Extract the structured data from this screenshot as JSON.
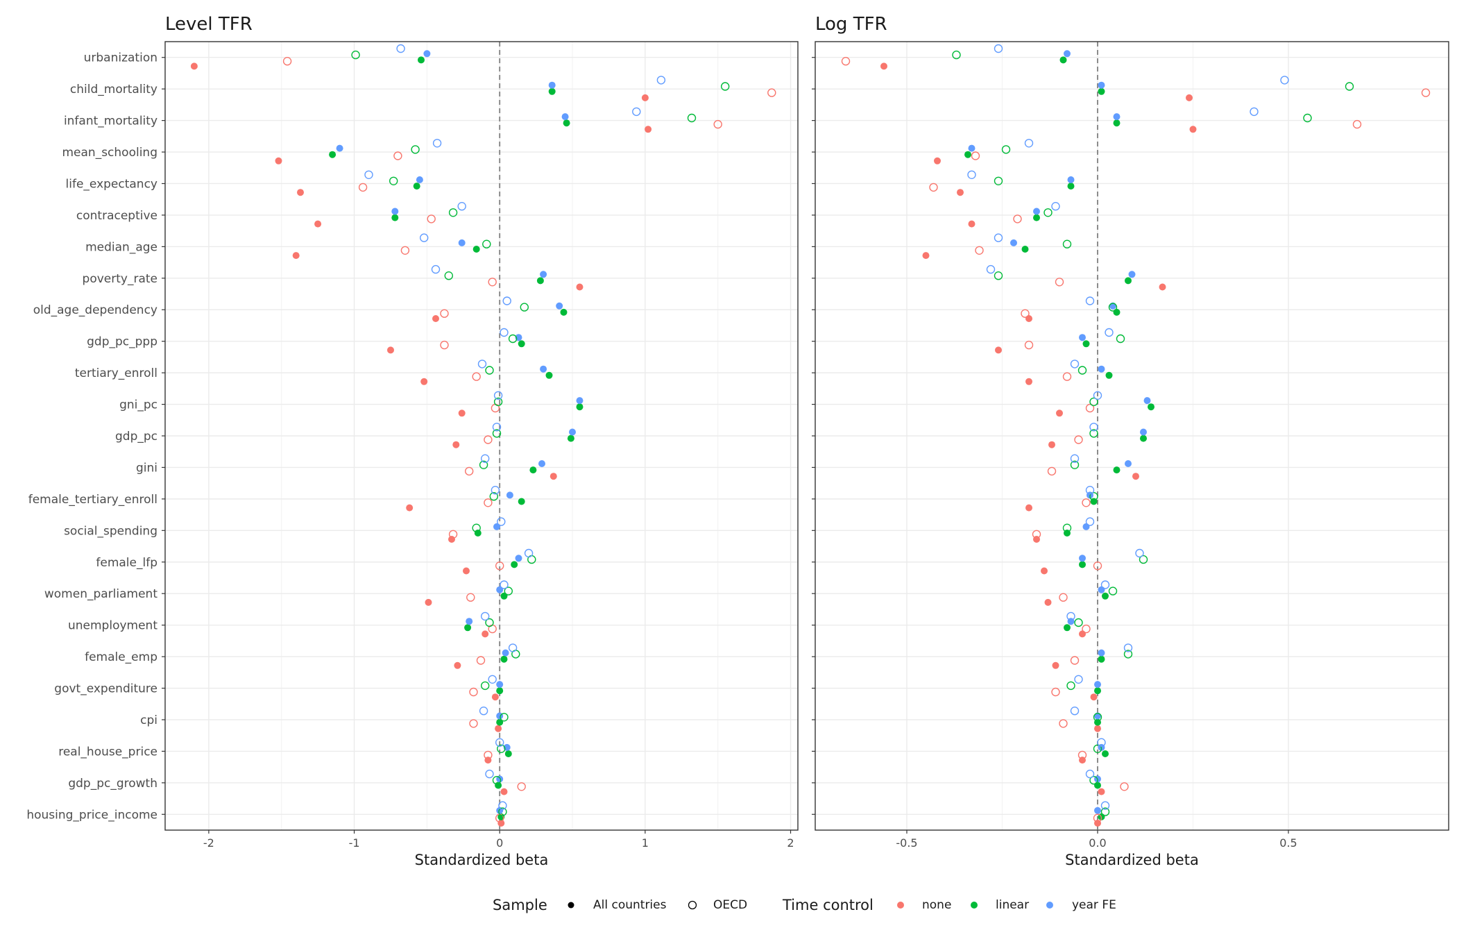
{
  "legend": {
    "sample_title": "Sample",
    "time_title": "Time control",
    "sample_items": [
      {
        "label": "All countries",
        "filled": true
      },
      {
        "label": "OECD",
        "filled": false
      }
    ],
    "time_items": [
      {
        "label": "none",
        "color": "#F8766D"
      },
      {
        "label": "linear",
        "color": "#00BA38"
      },
      {
        "label": "year FE",
        "color": "#619CFF"
      }
    ]
  },
  "chart_data": [
    {
      "type": "scatter",
      "title": "Level TFR",
      "xlabel": "Standardized beta",
      "ylabel": "",
      "xlim": [
        -2.3,
        2.05
      ],
      "xticks": [
        -2,
        -1,
        0,
        1,
        2
      ],
      "xtick_labels": [
        "-2",
        "-1",
        "0",
        "1",
        "2"
      ],
      "reference_line": 0,
      "categories": [
        "urbanization",
        "child_mortality",
        "infant_mortality",
        "mean_schooling",
        "life_expectancy",
        "contraceptive",
        "median_age",
        "poverty_rate",
        "old_age_dependency",
        "gdp_pc_ppp",
        "tertiary_enroll",
        "gni_pc",
        "gdp_pc",
        "gini",
        "female_tertiary_enroll",
        "social_spending",
        "female_lfp",
        "women_parliament",
        "unemployment",
        "female_emp",
        "govt_expenditure",
        "cpi",
        "real_house_price",
        "gdp_pc_growth",
        "housing_price_income"
      ],
      "series": [
        {
          "name": "All countries / none",
          "sample": "All countries",
          "time": "none",
          "values": [
            -2.1,
            1.0,
            1.02,
            -1.52,
            -1.37,
            -1.25,
            -1.4,
            0.55,
            -0.44,
            -0.75,
            -0.52,
            -0.26,
            -0.3,
            0.37,
            -0.62,
            -0.33,
            -0.23,
            -0.49,
            -0.1,
            -0.29,
            -0.03,
            -0.01,
            -0.08,
            0.03,
            0.01
          ]
        },
        {
          "name": "All countries / linear",
          "sample": "All countries",
          "time": "linear",
          "values": [
            -0.54,
            0.36,
            0.46,
            -1.15,
            -0.57,
            -0.72,
            -0.16,
            0.28,
            0.44,
            0.15,
            0.34,
            0.55,
            0.49,
            0.23,
            0.15,
            -0.15,
            0.1,
            0.03,
            -0.22,
            0.03,
            0.0,
            0.0,
            0.06,
            -0.01,
            0.01
          ]
        },
        {
          "name": "All countries / year FE",
          "sample": "All countries",
          "time": "year FE",
          "values": [
            -0.5,
            0.36,
            0.45,
            -1.1,
            -0.55,
            -0.72,
            -0.26,
            0.3,
            0.41,
            0.13,
            0.3,
            0.55,
            0.5,
            0.29,
            0.07,
            -0.02,
            0.13,
            0.0,
            -0.21,
            0.04,
            0.0,
            0.0,
            0.05,
            0.0,
            0.0
          ]
        },
        {
          "name": "OECD / none",
          "sample": "OECD",
          "time": "none",
          "values": [
            -1.46,
            1.87,
            1.5,
            -0.7,
            -0.94,
            -0.47,
            -0.65,
            -0.05,
            -0.38,
            -0.38,
            -0.16,
            -0.03,
            -0.08,
            -0.21,
            -0.08,
            -0.32,
            0.0,
            -0.2,
            -0.05,
            -0.13,
            -0.18,
            -0.18,
            -0.08,
            0.15,
            0.0
          ]
        },
        {
          "name": "OECD / linear",
          "sample": "OECD",
          "time": "linear",
          "values": [
            -0.99,
            1.55,
            1.32,
            -0.58,
            -0.73,
            -0.32,
            -0.09,
            -0.35,
            0.17,
            0.09,
            -0.07,
            -0.01,
            -0.02,
            -0.11,
            -0.04,
            -0.16,
            0.22,
            0.06,
            -0.07,
            0.11,
            -0.1,
            0.03,
            0.01,
            -0.02,
            0.02
          ]
        },
        {
          "name": "OECD / year FE",
          "sample": "OECD",
          "time": "year FE",
          "values": [
            -0.68,
            1.11,
            0.94,
            -0.43,
            -0.9,
            -0.26,
            -0.52,
            -0.44,
            0.05,
            0.03,
            -0.12,
            -0.01,
            -0.02,
            -0.1,
            -0.03,
            0.01,
            0.2,
            0.03,
            -0.1,
            0.09,
            -0.05,
            -0.11,
            0.0,
            -0.07,
            0.02
          ]
        }
      ]
    },
    {
      "type": "scatter",
      "title": "Log TFR",
      "xlabel": "Standardized beta",
      "ylabel": "",
      "xlim": [
        -0.74,
        0.92
      ],
      "xticks": [
        -0.5,
        0,
        0.5
      ],
      "xtick_labels": [
        "-0.5",
        "0.0",
        "0.5"
      ],
      "reference_line": 0,
      "categories": [
        "urbanization",
        "child_mortality",
        "infant_mortality",
        "mean_schooling",
        "life_expectancy",
        "contraceptive",
        "median_age",
        "poverty_rate",
        "old_age_dependency",
        "gdp_pc_ppp",
        "tertiary_enroll",
        "gni_pc",
        "gdp_pc",
        "gini",
        "female_tertiary_enroll",
        "social_spending",
        "female_lfp",
        "women_parliament",
        "unemployment",
        "female_emp",
        "govt_expenditure",
        "cpi",
        "real_house_price",
        "gdp_pc_growth",
        "housing_price_income"
      ],
      "series": [
        {
          "name": "All countries / none",
          "sample": "All countries",
          "time": "none",
          "values": [
            -0.56,
            0.24,
            0.25,
            -0.42,
            -0.36,
            -0.33,
            -0.45,
            0.17,
            -0.18,
            -0.26,
            -0.18,
            -0.1,
            -0.12,
            0.1,
            -0.18,
            -0.16,
            -0.14,
            -0.13,
            -0.04,
            -0.11,
            -0.01,
            0.0,
            -0.04,
            0.01,
            0.0
          ]
        },
        {
          "name": "All countries / linear",
          "sample": "All countries",
          "time": "linear",
          "values": [
            -0.09,
            0.01,
            0.05,
            -0.34,
            -0.07,
            -0.16,
            -0.19,
            0.08,
            0.05,
            -0.03,
            0.03,
            0.14,
            0.12,
            0.05,
            -0.01,
            -0.08,
            -0.04,
            0.02,
            -0.08,
            0.01,
            0.0,
            0.0,
            0.02,
            0.0,
            0.01
          ]
        },
        {
          "name": "All countries / year FE",
          "sample": "All countries",
          "time": "year FE",
          "values": [
            -0.08,
            0.01,
            0.05,
            -0.33,
            -0.07,
            -0.16,
            -0.22,
            0.09,
            0.04,
            -0.04,
            0.01,
            0.13,
            0.12,
            0.08,
            -0.02,
            -0.03,
            -0.04,
            0.01,
            -0.07,
            0.01,
            0.0,
            0.0,
            0.01,
            0.0,
            0.0
          ]
        },
        {
          "name": "OECD / none",
          "sample": "OECD",
          "time": "none",
          "values": [
            -0.66,
            0.86,
            0.68,
            -0.32,
            -0.43,
            -0.21,
            -0.31,
            -0.1,
            -0.19,
            -0.18,
            -0.08,
            -0.02,
            -0.05,
            -0.12,
            -0.03,
            -0.16,
            0.0,
            -0.09,
            -0.03,
            -0.06,
            -0.11,
            -0.09,
            -0.04,
            0.07,
            0.0
          ]
        },
        {
          "name": "OECD / linear",
          "sample": "OECD",
          "time": "linear",
          "values": [
            -0.37,
            0.66,
            0.55,
            -0.24,
            -0.26,
            -0.13,
            -0.08,
            -0.26,
            0.04,
            0.06,
            -0.04,
            -0.01,
            -0.01,
            -0.06,
            -0.01,
            -0.08,
            0.12,
            0.04,
            -0.05,
            0.08,
            -0.07,
            0.0,
            0.0,
            -0.01,
            0.02
          ]
        },
        {
          "name": "OECD / year FE",
          "sample": "OECD",
          "time": "year FE",
          "values": [
            -0.26,
            0.49,
            0.41,
            -0.18,
            -0.33,
            -0.11,
            -0.26,
            -0.28,
            -0.02,
            0.03,
            -0.06,
            0.0,
            -0.01,
            -0.06,
            -0.02,
            -0.02,
            0.11,
            0.02,
            -0.07,
            0.08,
            -0.05,
            -0.06,
            0.01,
            -0.02,
            0.02
          ]
        }
      ]
    }
  ]
}
